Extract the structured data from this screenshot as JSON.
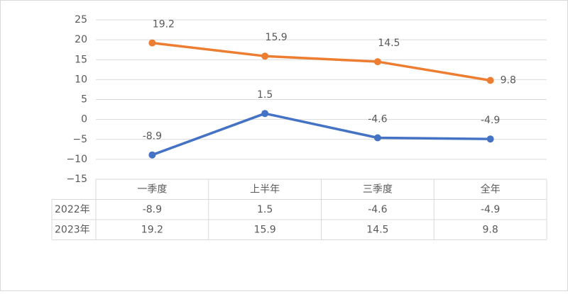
{
  "chart_data": {
    "type": "line",
    "categories": [
      "一季度",
      "上半年",
      "三季度",
      "全年"
    ],
    "series": [
      {
        "name": "2022年",
        "color": "#4472c4",
        "values": [
          -8.9,
          1.5,
          -4.6,
          -4.9
        ]
      },
      {
        "name": "2023年",
        "color": "#ed7d31",
        "values": [
          19.2,
          15.9,
          14.5,
          9.8
        ]
      }
    ],
    "ylim": [
      -15,
      25
    ],
    "yticks": [
      {
        "value": -15,
        "label": "−15"
      },
      {
        "value": -10,
        "label": "−10"
      },
      {
        "value": -5,
        "label": "−5"
      },
      0,
      5,
      10,
      15,
      20,
      25
    ],
    "grid": true
  }
}
